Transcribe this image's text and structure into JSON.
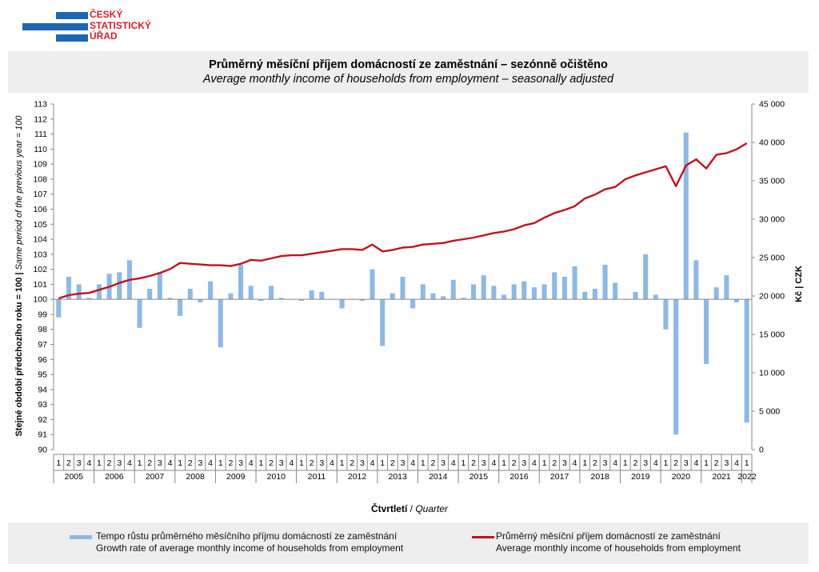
{
  "logo": {
    "lines": [
      "ČESKÝ",
      "STATISTICKÝ",
      "ÚŘAD"
    ],
    "colors": {
      "blue": "#1f66b2",
      "red": "#d51f2b"
    }
  },
  "title": {
    "cz": "Průměrný měsíční příjem domácností ze zaměstnání – sezónně očištěno",
    "en": "Average monthly income of households from employment – seasonally adjusted"
  },
  "legend": {
    "bar_cz": "Tempo růstu průměrného měsíčního příjmu domácností ze zaměstnání",
    "bar_en": "Growth rate of average monthly income of households from employment",
    "line_cz": "Průměrný měsíční příjem domácností ze zaměstnání",
    "line_en": "Average monthly income of households from employment"
  },
  "chart_data": {
    "type": "bar",
    "x_axis_title_cz": "Čtvrtletí",
    "x_axis_title_sep": " / ",
    "x_axis_title_en": "Quarter",
    "left_axis_title_cz": "Stejné období předchozího roku = 100 | ",
    "left_axis_title_en": "Same period of the previous year = 100",
    "right_axis_title": "Kč | CZK",
    "left_ylim": [
      90,
      113
    ],
    "right_ylim": [
      0,
      45000
    ],
    "left_ticks": [
      "90",
      "91",
      "92",
      "93",
      "94",
      "95",
      "96",
      "97",
      "98",
      "99",
      "100",
      "101",
      "102",
      "103",
      "104",
      "105",
      "106",
      "107",
      "108",
      "109",
      "110",
      "111",
      "112",
      "113"
    ],
    "right_ticks": [
      "0",
      "5 000",
      "10 000",
      "15 000",
      "20 000",
      "25 000",
      "30 000",
      "35 000",
      "40 000",
      "45 000"
    ],
    "grid": false,
    "legend_position": "bottom",
    "quarter_labels": [
      "1",
      "2",
      "3",
      "4"
    ],
    "years": [
      "2005",
      "2006",
      "2007",
      "2008",
      "2009",
      "2010",
      "2011",
      "2012",
      "2013",
      "2014",
      "2015",
      "2016",
      "2017",
      "2018",
      "2019",
      "2020",
      "2021",
      "2022"
    ],
    "bar_color": "#8eb9e3",
    "line_color": "#c0141e",
    "series": [
      {
        "name": "Tempo růstu průměrného měsíčního příjmu domácností ze zaměstnání",
        "type": "bar",
        "axis": "left",
        "values": [
          98.8,
          101.5,
          101.0,
          100.1,
          101.0,
          101.7,
          101.8,
          102.6,
          98.1,
          100.7,
          101.8,
          100.1,
          98.9,
          100.7,
          99.8,
          101.2,
          96.8,
          100.4,
          102.3,
          100.9,
          99.9,
          100.9,
          100.1,
          100.0,
          99.9,
          100.6,
          100.5,
          100.0,
          99.4,
          100.0,
          99.9,
          102.0,
          96.9,
          100.4,
          101.5,
          99.4,
          101.0,
          100.4,
          100.2,
          101.3,
          100.1,
          101.0,
          101.6,
          100.9,
          100.3,
          101.0,
          101.2,
          100.8,
          101.0,
          101.8,
          101.5,
          102.2,
          100.5,
          100.7,
          102.3,
          101.1,
          100.0,
          100.5,
          103.0,
          100.3,
          98.0,
          91.0,
          111.1,
          102.6,
          95.7,
          100.8,
          101.6,
          99.8,
          91.8
        ]
      },
      {
        "name": "Průměrný měsíční příjem domácností ze zaměstnání",
        "type": "line",
        "axis": "right",
        "values": [
          19700,
          20100,
          20300,
          20400,
          20800,
          21200,
          21700,
          22100,
          22300,
          22600,
          23000,
          23500,
          24300,
          24200,
          24100,
          24000,
          24000,
          23900,
          24200,
          24700,
          24600,
          24900,
          25200,
          25300,
          25300,
          25500,
          25700,
          25900,
          26100,
          26100,
          26000,
          26700,
          25800,
          26000,
          26300,
          26400,
          26700,
          26800,
          26900,
          27200,
          27400,
          27600,
          27900,
          28200,
          28400,
          28700,
          29200,
          29500,
          30200,
          30800,
          31200,
          31700,
          32700,
          33200,
          33900,
          34200,
          35200,
          35700,
          36100,
          36500,
          36900,
          34300,
          37000,
          37800,
          36600,
          38400,
          38600,
          39100,
          39900
        ]
      }
    ]
  }
}
